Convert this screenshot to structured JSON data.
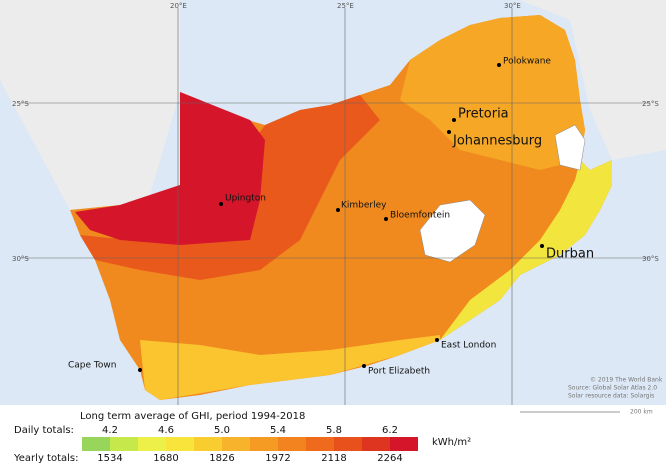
{
  "map": {
    "graticule": {
      "longitudes": [
        "20°E",
        "25°E",
        "30°E"
      ],
      "latitudes": [
        "25°S",
        "30°S"
      ]
    },
    "cities": [
      "Polokwane",
      "Pretoria",
      "Johannesburg",
      "Upington",
      "Kimberley",
      "Bloemfontein",
      "Durban",
      "East London",
      "Cape Town",
      "Port Elizabeth"
    ],
    "credits": [
      "© 2019 The World Bank",
      "Source: Global Solar Atlas 2.0",
      "Solar resource data: Solargis"
    ],
    "scale_bar": "200 km"
  },
  "legend": {
    "title": "Long term average of GHI, period 1994-2018",
    "daily_label": "Daily totals:",
    "daily_ticks": [
      "4.2",
      "4.6",
      "5.0",
      "5.4",
      "5.8",
      "6.2"
    ],
    "yearly_label": "Yearly totals:",
    "yearly_ticks": [
      "1534",
      "1680",
      "1826",
      "1972",
      "2118",
      "2264"
    ],
    "unit": "kWh/m²",
    "colors": [
      "#97d65a",
      "#c6e84a",
      "#eef04a",
      "#f8e43a",
      "#f9cc30",
      "#f7b32b",
      "#f59a23",
      "#f2831e",
      "#ef6a1c",
      "#e8501c",
      "#de3520",
      "#d4152a"
    ]
  }
}
